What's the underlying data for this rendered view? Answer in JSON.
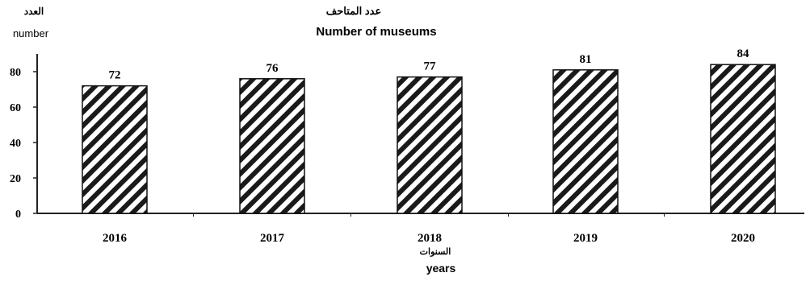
{
  "chart_data": {
    "type": "bar",
    "title_ar": "عدد المتاحف",
    "title": "Number of museums",
    "ylabel_ar": "العدد",
    "ylabel": "number",
    "xlabel_ar": "السنوات",
    "xlabel": "years",
    "categories": [
      "2016",
      "2017",
      "2018",
      "2019",
      "2020"
    ],
    "values": [
      72,
      76,
      77,
      81,
      84
    ],
    "data_labels": [
      "72",
      "76",
      "77",
      "81",
      "84"
    ],
    "ylim": [
      0,
      90
    ],
    "yticks": [
      0,
      20,
      40,
      60,
      80
    ],
    "ytick_labels": [
      "0",
      "20",
      "40",
      "60",
      "80"
    ],
    "grid": false,
    "legend": "none",
    "bar_fill": "diagonal-hatch",
    "colors": {
      "hatch": "#1a1a1a",
      "background": "#ffffff",
      "axis": "#222222"
    }
  }
}
